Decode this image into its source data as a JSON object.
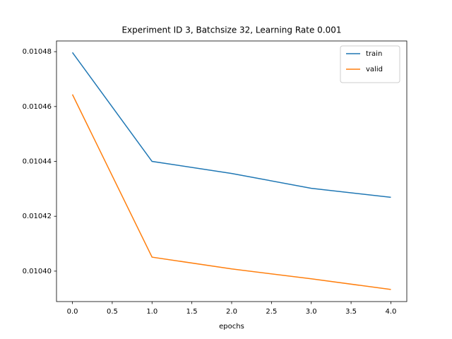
{
  "chart_data": {
    "type": "line",
    "title": "Experiment ID 3, Batchsize 32, Learning Rate 0.001",
    "x_label": "epochs",
    "x": [
      0,
      1,
      2,
      3,
      4
    ],
    "series": [
      {
        "name": "train",
        "color": "#1f77b4",
        "values": [
          0.0104797,
          0.01044,
          0.0104356,
          0.0104302,
          0.0104269
        ]
      },
      {
        "name": "valid",
        "color": "#ff7f0e",
        "values": [
          0.0104644,
          0.0104051,
          0.0104008,
          0.0103972,
          0.0103933
        ]
      }
    ],
    "xlim": [
      -0.2,
      4.2
    ],
    "xticks": [
      {
        "value": 0,
        "label": "0.0"
      },
      {
        "value": 0.5,
        "label": "0.5"
      },
      {
        "value": 1,
        "label": "1.0"
      },
      {
        "value": 1.5,
        "label": "1.5"
      },
      {
        "value": 2,
        "label": "2.0"
      },
      {
        "value": 2.5,
        "label": "2.5"
      },
      {
        "value": 3,
        "label": "3.0"
      },
      {
        "value": 3.5,
        "label": "3.5"
      },
      {
        "value": 4,
        "label": "4.0"
      }
    ],
    "ylim": [
      0.0103889,
      0.0104839
    ],
    "yticks": [
      {
        "value": 0.0104,
        "label": "0.01040"
      },
      {
        "value": 0.01042,
        "label": "0.01042"
      },
      {
        "value": 0.01044,
        "label": "0.01044"
      },
      {
        "value": 0.01046,
        "label": "0.01046"
      },
      {
        "value": 0.01048,
        "label": "0.01048"
      }
    ],
    "legend": "upper right"
  }
}
